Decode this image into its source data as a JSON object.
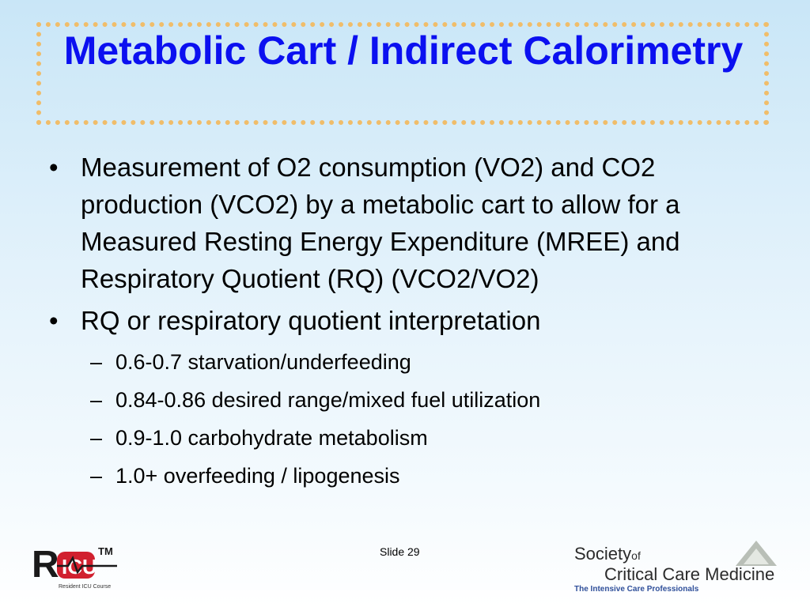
{
  "slide": {
    "title": "Metabolic Cart / Indirect Calorimetry",
    "number_label": "Slide 29"
  },
  "bullets": [
    {
      "text": "Measurement of O2 consumption (VO2) and CO2 production (VCO2) by a metabolic cart to allow for a Measured Resting Energy Expenditure (MREE) and Respiratory Quotient (RQ) (VCO2/VO2)",
      "subitems": []
    },
    {
      "text": "RQ or respiratory quotient interpretation",
      "subitems": [
        "0.6-0.7 starvation/underfeeding",
        "0.84-0.86 desired range/mixed fuel utilization",
        "0.9-1.0 carbohydrate metabolism",
        "1.0+ overfeeding / lipogenesis"
      ]
    }
  ],
  "marks": {
    "bullet": "•",
    "dash": "–"
  },
  "logos": {
    "ricu": {
      "tm": "TM",
      "caption": "Resident ICU Course"
    },
    "scm": {
      "line1": "Society",
      "line1_small": "of",
      "line2": "Critical Care Medicine",
      "tagline": "The Intensive Care Professionals"
    }
  },
  "colors": {
    "title": "#0b10f0",
    "title_border": "#f0bd6a",
    "ricu_red": "#d1202e",
    "scm_tag": "#2f4f9a"
  }
}
